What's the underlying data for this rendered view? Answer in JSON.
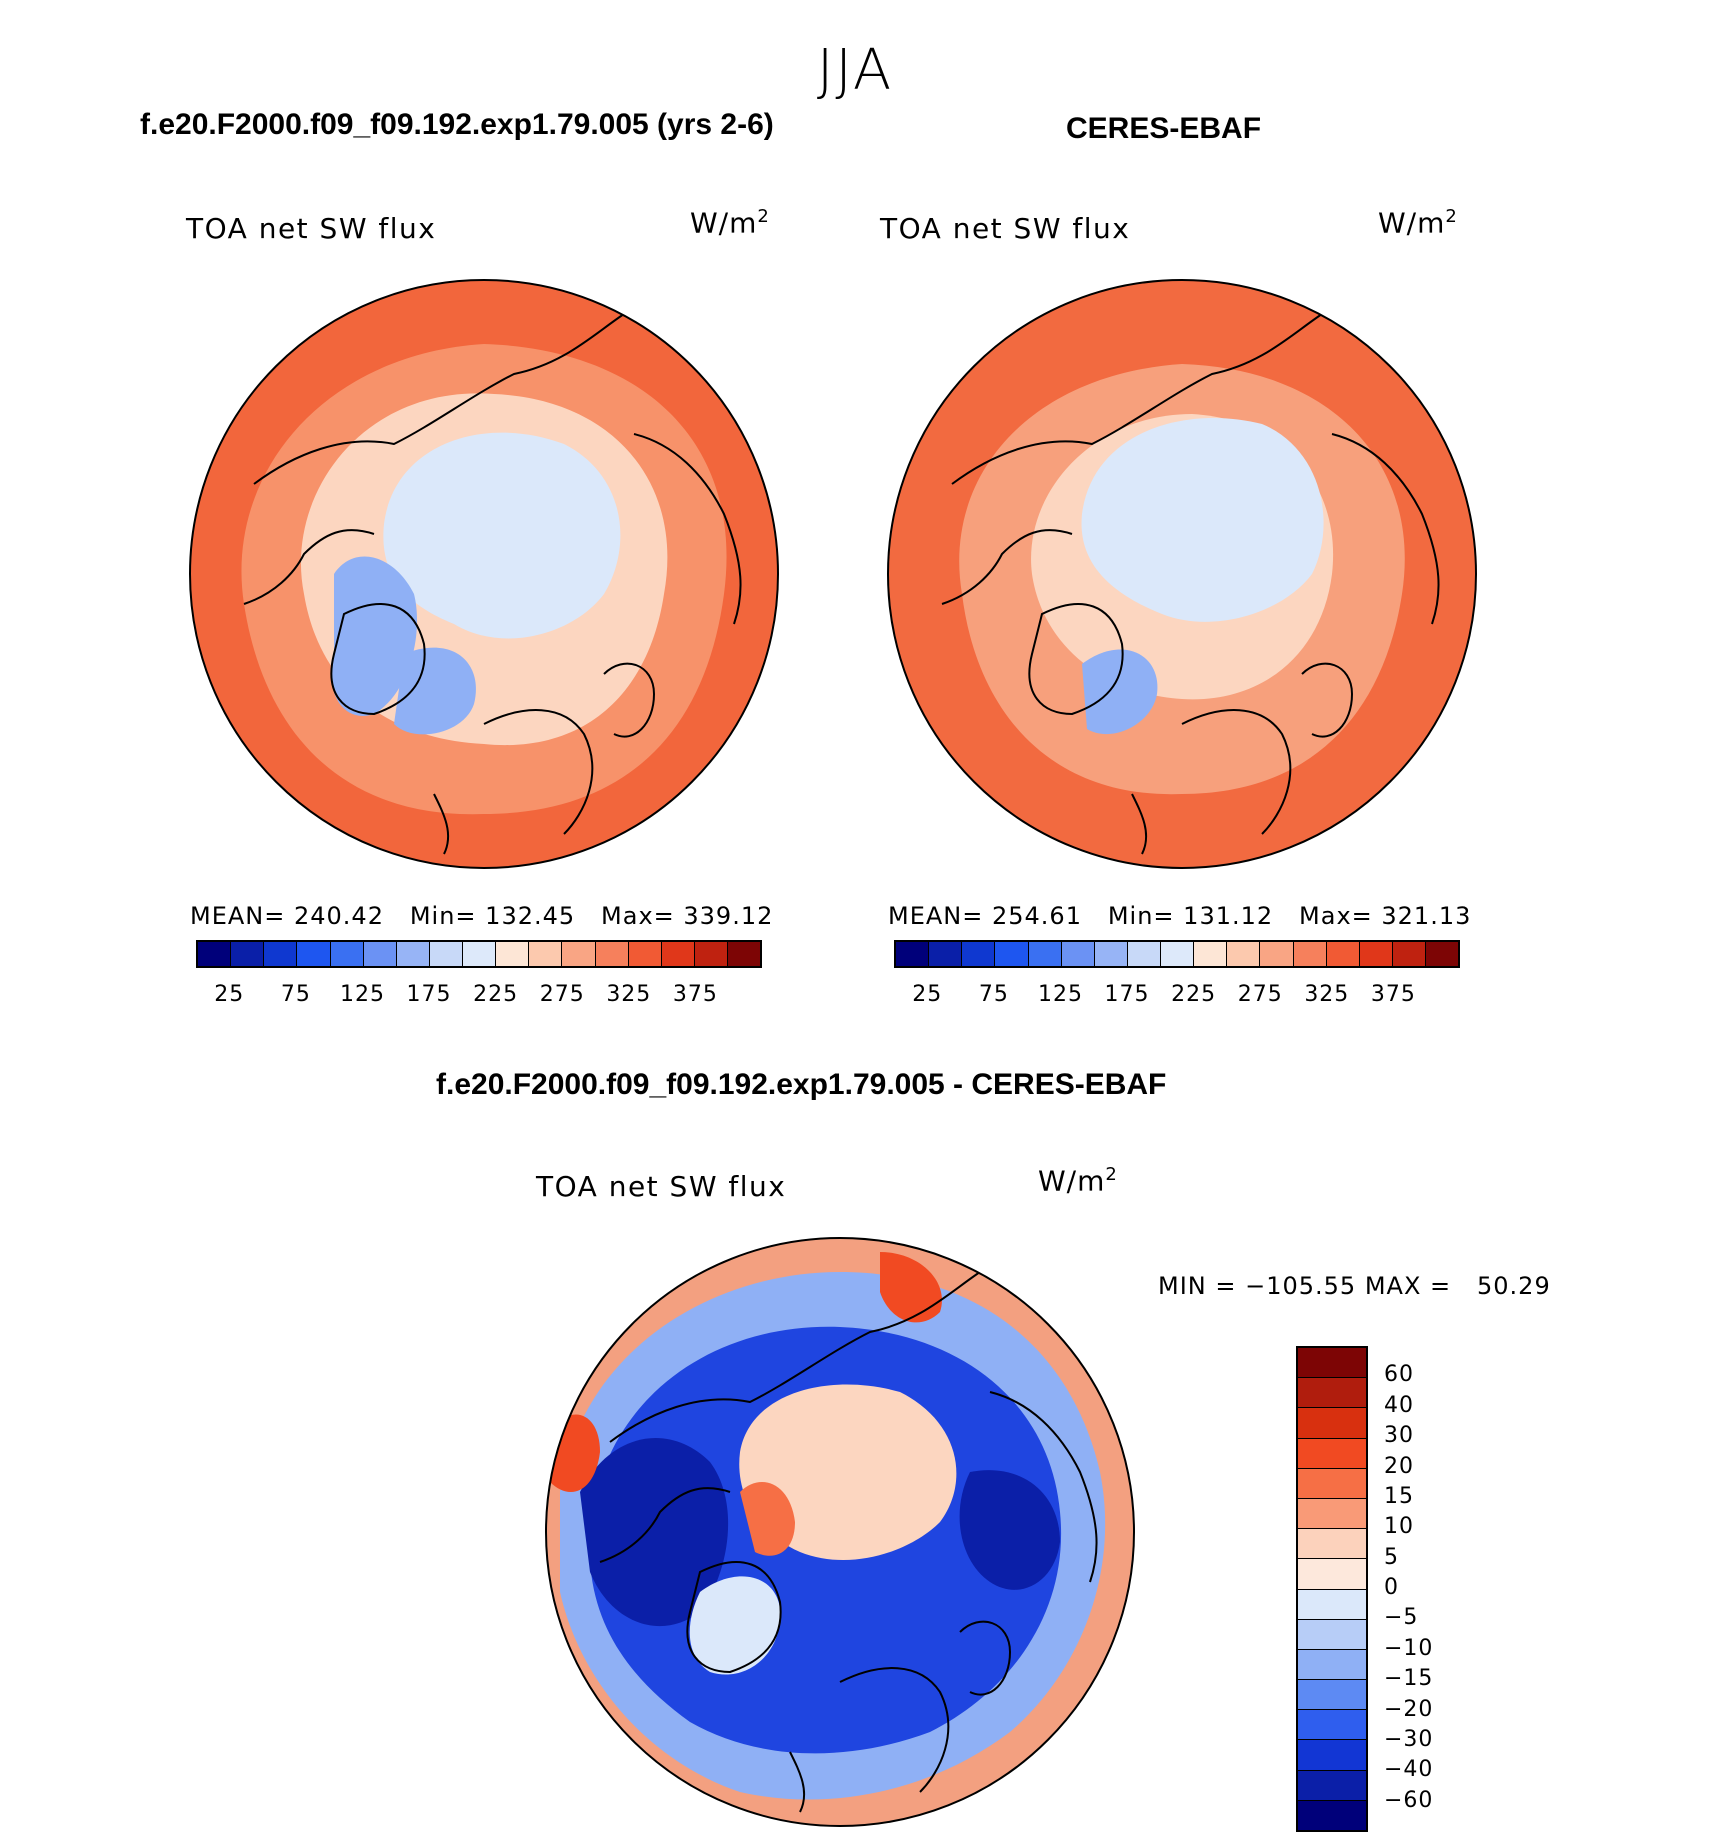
{
  "header": {
    "season": "JJA"
  },
  "panels": {
    "left": {
      "title": "f.e20.F2000.f09_f09.192.exp1.79.005 (yrs 2-6)",
      "variable": "TOA net SW flux",
      "units": "W/m",
      "units_exp": "2",
      "stats": "MEAN= 240.42   Min= 132.45   Max= 339.12"
    },
    "right": {
      "title": "CERES-EBAF",
      "variable": "TOA net SW flux",
      "units": "W/m",
      "units_exp": "2",
      "stats": "MEAN= 254.61   Min= 131.12   Max= 321.13"
    },
    "diff": {
      "title": "f.e20.F2000.f09_f09.192.exp1.79.005 - CERES-EBAF",
      "variable": "TOA net SW flux",
      "units": "W/m",
      "units_exp": "2",
      "stats": "MIN = −105.55 MAX =   50.29"
    }
  },
  "colorbar_abs": {
    "ticks": [
      "25",
      "75",
      "125",
      "175",
      "225",
      "275",
      "325",
      "375"
    ],
    "colors": [
      "#00007a",
      "#0a1fa8",
      "#0f38d0",
      "#1e56f0",
      "#3a70f2",
      "#6b92f4",
      "#97b4f6",
      "#c8d9f8",
      "#dde9fa",
      "#fde6d6",
      "#fcc9ae",
      "#f9a584",
      "#f6805c",
      "#f15a34",
      "#e0371a",
      "#bf2210",
      "#7d0505"
    ]
  },
  "colorbar_diff": {
    "labels": [
      "60",
      "40",
      "30",
      "20",
      "15",
      "10",
      "5",
      "0",
      "−5",
      "−10",
      "−15",
      "−20",
      "−30",
      "−40",
      "−60"
    ],
    "colors": [
      "#7d0505",
      "#b01d0d",
      "#d8300f",
      "#f14a22",
      "#f66f45",
      "#f99a77",
      "#fcd2bc",
      "#fde8dc",
      "#dbe8fa",
      "#b7cdf7",
      "#8fb0f5",
      "#5d8af3",
      "#2f5eee",
      "#1236d4",
      "#0b1fa8",
      "#00007a"
    ]
  },
  "maps": {
    "left": {
      "outer_color": "#f2663c",
      "mid_color": "#f7926a",
      "inner_color": "#fcd6c0",
      "cap_color": "#dbe8fa",
      "ice_color": "#8fb0f5"
    },
    "right": {
      "outer_color": "#f26a40",
      "mid_color": "#f7a07c",
      "inner_color": "#fcd6c0",
      "cap_color": "#dbe8fa",
      "ice_color": "#8fb0f5"
    },
    "diff": {
      "outer_color": "#f3a080",
      "ring_color": "#1f45e0",
      "deep_color": "#0b1fa8",
      "cap_color": "#fcd6c0",
      "ice_color": "#dbe8fa"
    }
  }
}
